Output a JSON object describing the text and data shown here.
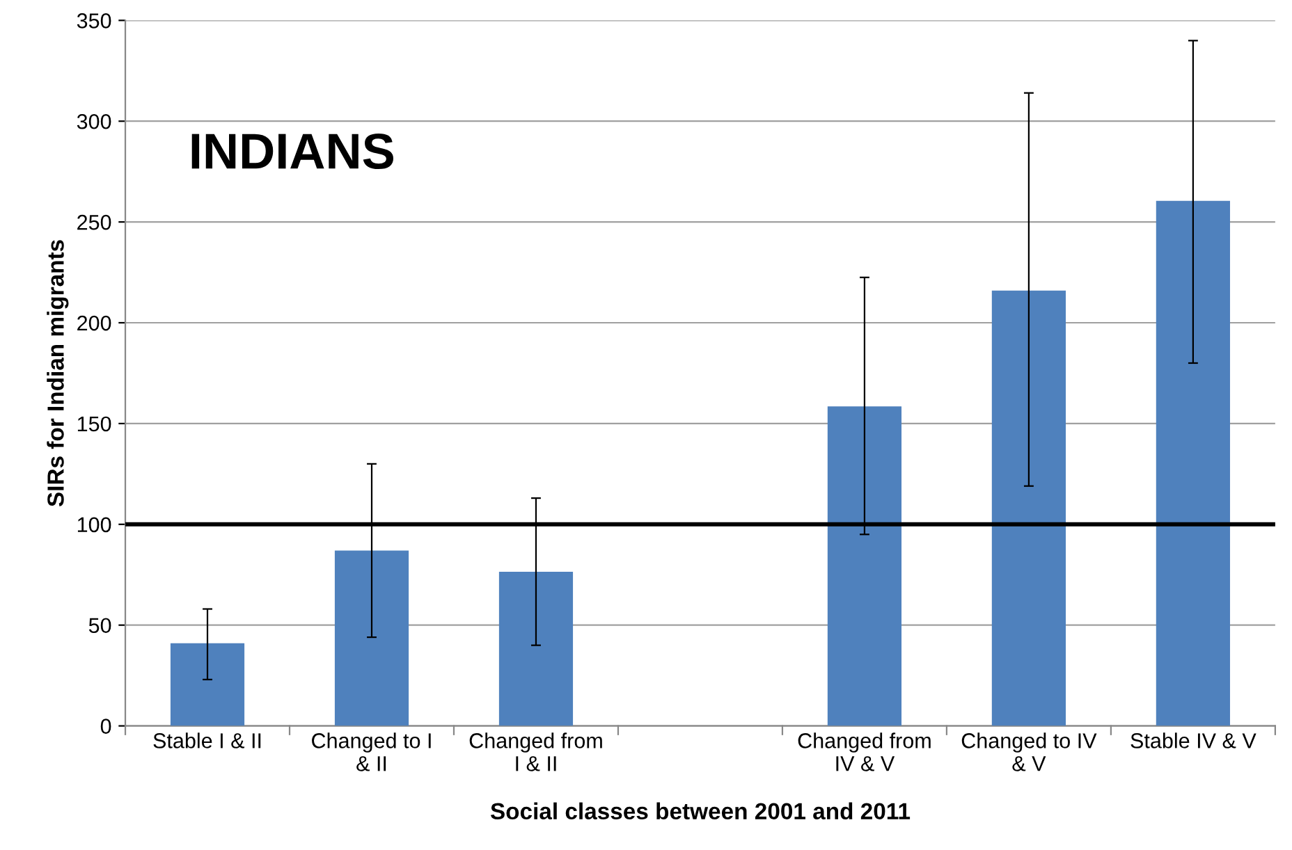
{
  "chart_data": {
    "type": "bar",
    "xlabel": "Social classes between 2001 and 2011",
    "ylabel": "SIRs for Indian migrants",
    "categories": [
      "Stable I & II",
      "Changed to I & II",
      "Changed from I & II",
      null,
      "Changed from IV & V",
      "Changed to IV & V",
      "Stable IV & V"
    ],
    "values": [
      41,
      87,
      76.5,
      null,
      158.5,
      216,
      260.5
    ],
    "errors": [
      [
        23,
        58
      ],
      [
        44,
        130
      ],
      [
        40,
        113
      ],
      null,
      [
        95,
        222.5
      ],
      [
        119,
        314
      ],
      [
        180,
        340
      ]
    ],
    "color": "#4f81bd",
    "ylim": [
      0,
      350
    ],
    "yticks": [
      0,
      50,
      100,
      150,
      200,
      250,
      300,
      350
    ],
    "grid": "y",
    "ref_lines": [
      {
        "axis": "y",
        "value": 100,
        "color": "#000000"
      }
    ],
    "annotations": [
      "INDIANS"
    ]
  }
}
